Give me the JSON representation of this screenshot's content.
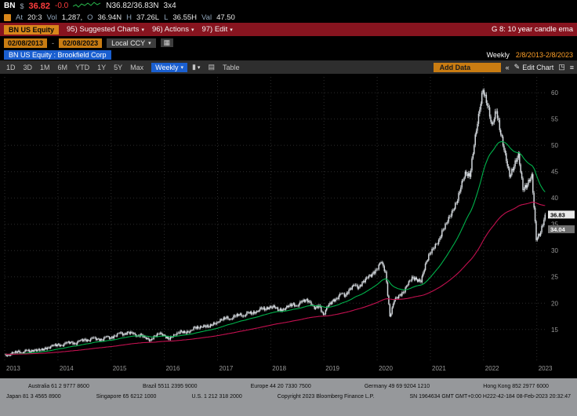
{
  "quote": {
    "symbol": "BN",
    "currency": "$",
    "last": "36.82",
    "change": "-0.0",
    "bid_ask": "N36.82/36.83N",
    "lot": "3x4",
    "at_label": "At",
    "at_value": "20:3",
    "vol_label": "Vol",
    "vol_value": "1,287,",
    "open_label": "O",
    "open_value": "36.94N",
    "high_label": "H",
    "high_value": "37.26L",
    "low_label": "L",
    "low_value": "36.55H",
    "val_label": "Val",
    "val_value": "47.50"
  },
  "menu": {
    "security_tag": "BN US Equity",
    "items": [
      {
        "label": "95) Suggested Charts"
      },
      {
        "label": "96) Actions"
      },
      {
        "label": "97) Edit"
      }
    ],
    "screen_label": "G 8: 10 year candle ema"
  },
  "controls": {
    "date_from": "02/08/2013",
    "separator": "-",
    "date_to": "02/08/2023",
    "currency": "Local CCY"
  },
  "chart_header": {
    "title": "BN US Equity : Brookfield Corp",
    "frequency": "Weekly",
    "range": "2/8/2013-2/8/2023"
  },
  "toolbar": {
    "periods": [
      "1D",
      "3D",
      "1M",
      "6M",
      "YTD",
      "1Y",
      "5Y",
      "Max"
    ],
    "frequency": "Weekly",
    "table_label": "Table",
    "add_data_placeholder": "Add Data",
    "edit_chart_label": "Edit Chart"
  },
  "chart_data": {
    "type": "candlestick",
    "security": "BN US Equity (Brookfield Corp)",
    "frequency_shown": "Weekly",
    "date_range": [
      "2/8/2013",
      "2/8/2023"
    ],
    "x_tick_labels": [
      "2013",
      "2014",
      "2015",
      "2016",
      "2017",
      "2018",
      "2019",
      "2020",
      "2021",
      "2022",
      "2023"
    ],
    "y_ticks": [
      15,
      20,
      25,
      30,
      35,
      40,
      45,
      50,
      55,
      60
    ],
    "ylim": [
      9,
      63
    ],
    "last_price": 36.83,
    "price_badges": [
      {
        "label": "36.83",
        "price": 36.83,
        "bg": "#e9e9e9",
        "fg": "#000000"
      },
      {
        "label": "34.04",
        "price": 34.04,
        "bg": "#6f6f6f",
        "fg": "#ffffff"
      }
    ],
    "monthly_closes": {
      "start": "2013-01",
      "values": [
        10.2,
        10.5,
        10.8,
        10.6,
        11.0,
        10.8,
        11.2,
        11.0,
        11.3,
        11.6,
        11.9,
        12.1,
        12.0,
        12.4,
        12.6,
        12.3,
        12.8,
        13.1,
        12.9,
        13.4,
        13.2,
        13.0,
        13.6,
        13.4,
        13.8,
        14.3,
        14.1,
        14.5,
        14.2,
        13.8,
        14.0,
        13.2,
        13.0,
        13.8,
        14.2,
        14.0,
        13.2,
        13.6,
        14.4,
        14.6,
        14.3,
        14.8,
        15.4,
        15.2,
        15.8,
        15.5,
        15.9,
        16.4,
        16.8,
        17.2,
        17.0,
        17.5,
        17.8,
        17.6,
        18.2,
        18.0,
        18.5,
        19.0,
        18.8,
        19.4,
        19.2,
        18.6,
        18.9,
        19.3,
        19.8,
        19.5,
        20.2,
        20.6,
        20.3,
        18.9,
        19.6,
        17.8,
        19.4,
        20.4,
        20.9,
        21.8,
        21.5,
        22.8,
        23.4,
        23.0,
        24.2,
        24.8,
        25.6,
        26.4,
        27.8,
        26.0,
        17.5,
        20.5,
        21.5,
        22.0,
        23.5,
        25.0,
        24.5,
        24.0,
        27.5,
        29.5,
        30.5,
        32.0,
        34.0,
        35.5,
        37.5,
        39.0,
        42.0,
        45.0,
        44.0,
        50.0,
        56.0,
        60.5,
        57.5,
        54.0,
        56.5,
        52.0,
        48.5,
        44.0,
        46.0,
        48.5,
        41.5,
        42.5,
        44.5,
        32.0,
        33.5,
        36.83
      ]
    },
    "overlays": [
      {
        "name": "EMA short",
        "color": "#00b24b",
        "period_weeks": 40
      },
      {
        "name": "EMA long",
        "color": "#c2104f",
        "period_weeks": 150
      }
    ],
    "candle_color": "#d4d9de",
    "grid_color": "#2c2c2c"
  },
  "footer": {
    "line1_items": [
      "Australia 61 2 9777 8600",
      "Brazil 5511 2395 9000",
      "Europe 44 20 7330 7500",
      "Germany 49 69 9204 1210",
      "Hong Kong 852 2977 6000"
    ],
    "line2_items": [
      "Japan 81 3 4565 8900",
      "Singapore 65 6212 1000",
      "U.S. 1 212 318 2000",
      "Copyright 2023 Bloomberg Finance L.P.",
      "SN 1964634 GMT GMT+0:00 H222-42-184 08-Feb-2023 20:32:47"
    ]
  },
  "ui_colors": {
    "amber": "#d8861a",
    "menubar_red": "#87141f",
    "selection_blue": "#1a5fd0"
  }
}
